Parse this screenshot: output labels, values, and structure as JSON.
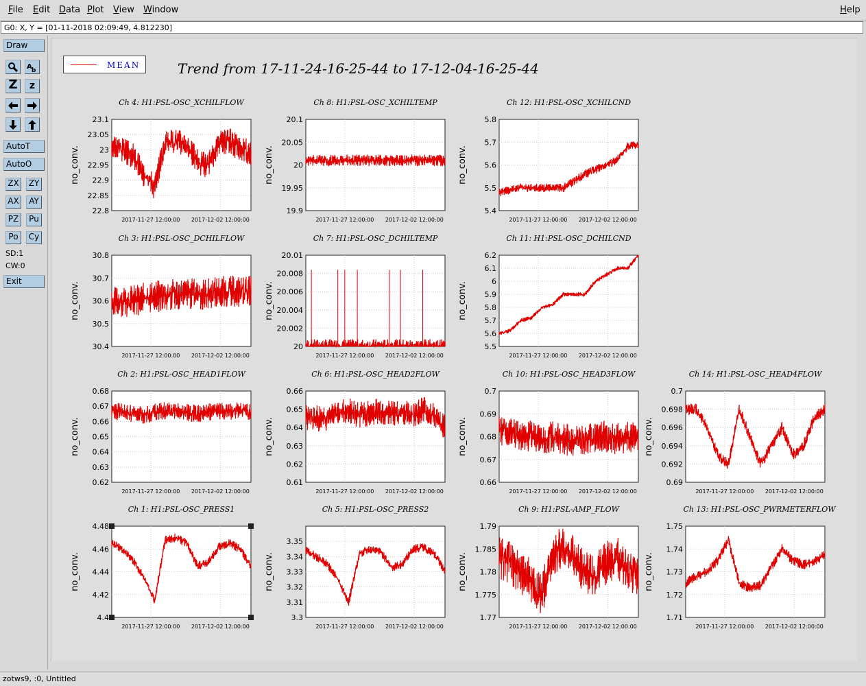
{
  "menu": {
    "file": "File",
    "edit": "Edit",
    "data": "Data",
    "plot": "Plot",
    "view": "View",
    "window": "Window",
    "help": "Help"
  },
  "cursor_readout": "G0: X, Y = [01-11-2018 02:09:49, 4.812230]",
  "toolbar": {
    "draw": "Draw",
    "zoom_big": "Z",
    "zoom_small": "z",
    "autoT": "AutoT",
    "autoO": "AutoO",
    "zx": "ZX",
    "zy": "ZY",
    "ax": "AX",
    "ay": "AY",
    "pz": "PZ",
    "pu": "Pu",
    "po": "Po",
    "cy": "Cy",
    "sd": "SD:1",
    "cw": "CW:0",
    "exit": "Exit"
  },
  "legend": {
    "label": "MEAN",
    "color": "#e00000"
  },
  "title": "Trend from 17-11-24-16-25-44 to 17-12-04-16-25-44",
  "bottom_status": "zotws9, :0, Untitled",
  "chart_data": [
    {
      "type": "line",
      "title": "Ch 4: H1:PSL-OSC_XCHILFLOW",
      "ylabel": "no_conv.",
      "ylim": [
        22.8,
        23.1
      ],
      "yticks": [
        "22.8",
        "22.85",
        "22.9",
        "22.95",
        "23",
        "23.05",
        "23.1"
      ],
      "xticks": [
        "2017-11-27 12:00:00",
        "2017-12-02 12:00:00"
      ],
      "series": [
        {
          "values": [
            23.02,
            23.0,
            22.98,
            22.92,
            22.88,
            23.02,
            23.03,
            23.02,
            22.96,
            22.95,
            23.02,
            23.03,
            23.0,
            22.99
          ]
        }
      ]
    },
    {
      "type": "line",
      "title": "Ch 8: H1:PSL-OSC_XCHILTEMP",
      "ylabel": "no_conv.",
      "ylim": [
        19.9,
        20.1
      ],
      "yticks": [
        "19.9",
        "19.95",
        "20",
        "20.05",
        "20.1"
      ],
      "xticks": [
        "2017-11-27 12:00:00",
        "2017-12-02 12:00:00"
      ],
      "series": [
        {
          "values": [
            20.01,
            20.01,
            20.01,
            20.01,
            20.01,
            20.01,
            20.01,
            20.01,
            20.01,
            20.01,
            20.01,
            20.01,
            20.01,
            20.01
          ]
        }
      ]
    },
    {
      "type": "line",
      "title": "Ch 12: H1:PSL-OSC_XCHILCND",
      "ylabel": "no_conv.",
      "ylim": [
        5.4,
        5.8
      ],
      "yticks": [
        "5.4",
        "5.5",
        "5.6",
        "5.7",
        "5.8"
      ],
      "xticks": [
        "2017-11-27 12:00:00",
        "2017-12-02 12:00:00"
      ],
      "series": [
        {
          "values": [
            5.48,
            5.49,
            5.5,
            5.5,
            5.5,
            5.5,
            5.5,
            5.53,
            5.56,
            5.58,
            5.6,
            5.62,
            5.68,
            5.69
          ]
        }
      ]
    },
    {
      "type": "line",
      "title": "Ch 3: H1:PSL-OSC_DCHILFLOW",
      "ylabel": "no_conv.",
      "ylim": [
        30.4,
        30.8
      ],
      "yticks": [
        "30.4",
        "30.5",
        "30.6",
        "30.7",
        "30.8"
      ],
      "xticks": [
        "2017-11-27 12:00:00",
        "2017-12-02 12:00:00"
      ],
      "series": [
        {
          "values": [
            30.59,
            30.6,
            30.6,
            30.61,
            30.62,
            30.62,
            30.63,
            30.63,
            30.63,
            30.63,
            30.64,
            30.64,
            30.64,
            30.64
          ]
        }
      ]
    },
    {
      "type": "line",
      "title": "Ch 7: H1:PSL-OSC_DCHILTEMP",
      "ylabel": "no_conv.",
      "ylim": [
        20,
        20.01
      ],
      "yticks": [
        "20",
        "20.002",
        "20.004",
        "20.006",
        "20.008",
        "20.01"
      ],
      "xticks": [
        "2017-11-27 12:00:00",
        "2017-12-02 12:00:00"
      ],
      "series": [
        {
          "values": [
            20,
            20,
            20,
            20,
            20,
            20,
            20,
            20,
            20,
            20,
            20,
            20,
            20,
            20
          ]
        }
      ]
    },
    {
      "type": "line",
      "title": "Ch 11: H1:PSL-OSC_DCHILCND",
      "ylabel": "no_conv.",
      "ylim": [
        5.5,
        6.2
      ],
      "yticks": [
        "5.5",
        "5.6",
        "5.7",
        "5.8",
        "5.9",
        "6",
        "6.1",
        "6.2"
      ],
      "xticks": [
        "2017-11-27 12:00:00",
        "2017-12-02 12:00:00"
      ],
      "series": [
        {
          "values": [
            5.6,
            5.62,
            5.7,
            5.72,
            5.8,
            5.82,
            5.9,
            5.9,
            5.9,
            6.0,
            6.05,
            6.1,
            6.1,
            6.2
          ]
        }
      ]
    },
    {
      "type": "line",
      "title": "Ch 2: H1:PSL-OSC_HEAD1FLOW",
      "ylabel": "no_conv.",
      "ylim": [
        0.62,
        0.68
      ],
      "yticks": [
        "0.62",
        "0.63",
        "0.64",
        "0.65",
        "0.66",
        "0.67",
        "0.68"
      ],
      "xticks": [
        "2017-11-27 12:00:00",
        "2017-12-02 12:00:00"
      ],
      "series": [
        {
          "values": [
            0.667,
            0.666,
            0.665,
            0.664,
            0.666,
            0.667,
            0.667,
            0.666,
            0.665,
            0.666,
            0.667,
            0.666,
            0.667,
            0.666
          ]
        }
      ]
    },
    {
      "type": "line",
      "title": "Ch 6: H1:PSL-OSC_HEAD2FLOW",
      "ylabel": "no_conv.",
      "ylim": [
        0.61,
        0.66
      ],
      "yticks": [
        "0.61",
        "0.62",
        "0.63",
        "0.64",
        "0.65",
        "0.66"
      ],
      "xticks": [
        "2017-11-27 12:00:00",
        "2017-12-02 12:00:00"
      ],
      "series": [
        {
          "values": [
            0.646,
            0.645,
            0.645,
            0.648,
            0.649,
            0.647,
            0.648,
            0.649,
            0.648,
            0.648,
            0.647,
            0.65,
            0.646,
            0.64
          ]
        }
      ]
    },
    {
      "type": "line",
      "title": "Ch 10: H1:PSL-OSC_HEAD3FLOW",
      "ylabel": "no_conv.",
      "ylim": [
        0.66,
        0.7
      ],
      "yticks": [
        "0.66",
        "0.67",
        "0.68",
        "0.69",
        "0.7"
      ],
      "xticks": [
        "2017-11-27 12:00:00",
        "2017-12-02 12:00:00"
      ],
      "series": [
        {
          "values": [
            0.683,
            0.682,
            0.681,
            0.68,
            0.679,
            0.68,
            0.679,
            0.678,
            0.679,
            0.68,
            0.68,
            0.679,
            0.68,
            0.679
          ]
        }
      ]
    },
    {
      "type": "line",
      "title": "Ch 14: H1:PSL-OSC_HEAD4FLOW",
      "ylabel": "no_conv.",
      "ylim": [
        0.69,
        0.7
      ],
      "yticks": [
        "0.69",
        "0.692",
        "0.694",
        "0.696",
        "0.698",
        "0.7"
      ],
      "xticks": [
        "2017-11-27 12:00:00",
        "2017-12-02 12:00:00"
      ],
      "series": [
        {
          "values": [
            0.698,
            0.698,
            0.696,
            0.693,
            0.692,
            0.698,
            0.695,
            0.692,
            0.694,
            0.696,
            0.693,
            0.694,
            0.697,
            0.698
          ]
        }
      ]
    },
    {
      "type": "line",
      "title": "Ch 1: H1:PSL-OSC_PRESS1",
      "ylabel": "no_conv.",
      "ylim": [
        4.4,
        4.48
      ],
      "yticks": [
        "4.4",
        "4.42",
        "4.44",
        "4.46",
        "4.48"
      ],
      "xticks": [
        "2017-11-27 12:00:00",
        "2017-12-02 12:00:00"
      ],
      "series": [
        {
          "values": [
            4.465,
            4.46,
            4.45,
            4.435,
            4.415,
            4.468,
            4.47,
            4.465,
            4.445,
            4.448,
            4.462,
            4.465,
            4.46,
            4.445
          ]
        }
      ]
    },
    {
      "type": "line",
      "title": "Ch 5: H1:PSL-OSC_PRESS2",
      "ylabel": "no_conv.",
      "ylim": [
        3.3,
        3.36
      ],
      "yticks": [
        "3.3",
        "3.31",
        "3.32",
        "3.33",
        "3.34",
        "3.35"
      ],
      "xticks": [
        "2017-11-27 12:00:00",
        "2017-12-02 12:00:00"
      ],
      "series": [
        {
          "values": [
            3.344,
            3.34,
            3.335,
            3.325,
            3.31,
            3.342,
            3.345,
            3.343,
            3.333,
            3.335,
            3.345,
            3.346,
            3.342,
            3.33
          ]
        }
      ]
    },
    {
      "type": "line",
      "title": "Ch 9: H1:PSL-AMP_FLOW",
      "ylabel": "no_conv.",
      "ylim": [
        1.77,
        1.79
      ],
      "yticks": [
        "1.77",
        "1.775",
        "1.78",
        "1.785",
        "1.79"
      ],
      "xticks": [
        "2017-11-27 12:00:00",
        "2017-12-02 12:00:00"
      ],
      "series": [
        {
          "values": [
            1.783,
            1.782,
            1.78,
            1.778,
            1.775,
            1.784,
            1.785,
            1.783,
            1.78,
            1.779,
            1.782,
            1.783,
            1.781,
            1.779
          ]
        }
      ]
    },
    {
      "type": "line",
      "title": "Ch 13: H1:PSL-OSC_PWRMETERFLOW",
      "ylabel": "no_conv.",
      "ylim": [
        1.71,
        1.75
      ],
      "yticks": [
        "1.71",
        "1.72",
        "1.73",
        "1.74",
        "1.75"
      ],
      "xticks": [
        "2017-11-27 12:00:00",
        "2017-12-02 12:00:00"
      ],
      "series": [
        {
          "values": [
            1.725,
            1.728,
            1.73,
            1.735,
            1.744,
            1.725,
            1.723,
            1.724,
            1.732,
            1.74,
            1.735,
            1.733,
            1.734,
            1.738
          ]
        }
      ]
    }
  ]
}
